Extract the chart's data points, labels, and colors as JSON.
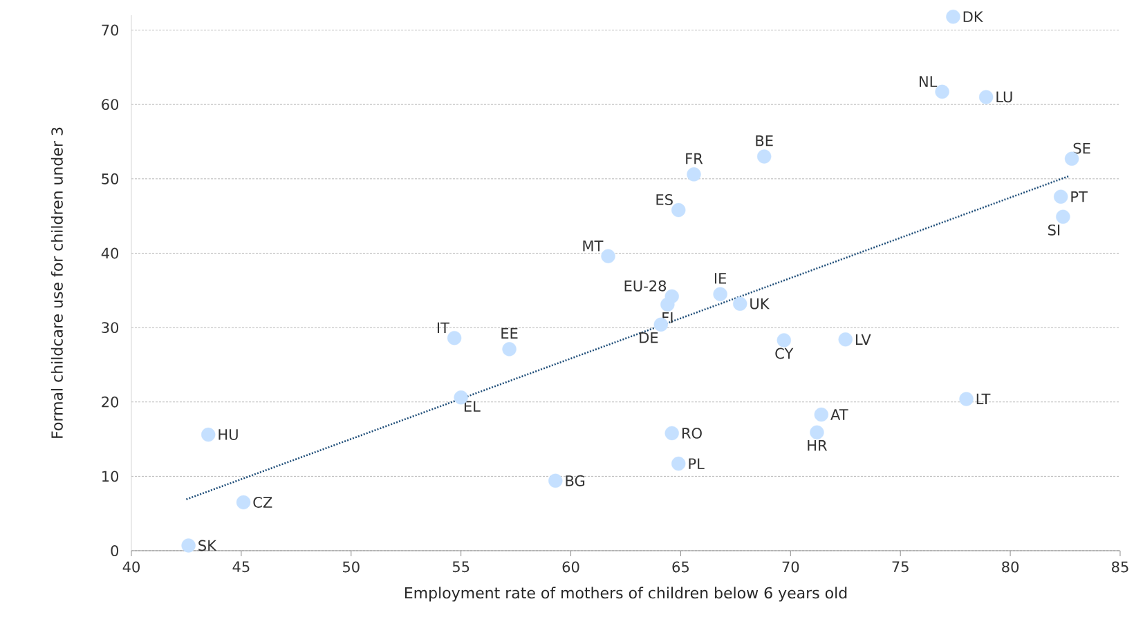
{
  "chart_data": {
    "type": "scatter",
    "xlabel": "Employment rate of mothers of children below 6 years old",
    "ylabel": "Formal childcare use for children under 3",
    "xlim": [
      40,
      85
    ],
    "xticks": [
      40,
      45,
      50,
      55,
      60,
      65,
      70,
      75,
      80,
      85
    ],
    "ylim": [
      0,
      72
    ],
    "yticks": [
      0,
      10,
      20,
      30,
      40,
      50,
      60,
      70
    ],
    "grid": "y",
    "series": [
      {
        "type": "scatter",
        "color": "#c5e0ff",
        "marker": "circle",
        "x": [
          77.4,
          76.9,
          78.9,
          68.8,
          65.6,
          82.8,
          82.3,
          82.4,
          64.9,
          61.7,
          64.6,
          64.4,
          66.8,
          67.7,
          64.1,
          54.7,
          57.2,
          69.7,
          72.5,
          78.0,
          55.0,
          71.4,
          71.2,
          64.6,
          64.9,
          43.5,
          59.3,
          45.1,
          42.6
        ],
        "values": [
          71.8,
          61.7,
          61.0,
          53.0,
          50.6,
          52.7,
          47.6,
          44.9,
          45.8,
          39.6,
          34.2,
          33.1,
          34.5,
          33.2,
          30.4,
          28.6,
          27.1,
          28.3,
          28.4,
          20.4,
          20.6,
          18.3,
          15.9,
          15.8,
          11.7,
          15.6,
          9.4,
          6.5,
          0.7
        ]
      },
      {
        "type": "line",
        "color": "#1f4e79",
        "line_style": "dotted",
        "x": [
          42.5,
          82.7
        ],
        "values": [
          6.9,
          50.4
        ]
      }
    ],
    "annotations": [
      {
        "text": "DK",
        "x": 77.4,
        "y": 71.8
      },
      {
        "text": "NL",
        "x": 76.9,
        "y": 61.7
      },
      {
        "text": "LU",
        "x": 78.9,
        "y": 61.0
      },
      {
        "text": "BE",
        "x": 68.8,
        "y": 53.0
      },
      {
        "text": "FR",
        "x": 65.6,
        "y": 50.6
      },
      {
        "text": "SE",
        "x": 82.8,
        "y": 52.7
      },
      {
        "text": "PT",
        "x": 82.3,
        "y": 47.6
      },
      {
        "text": "SI",
        "x": 82.4,
        "y": 44.9
      },
      {
        "text": "ES",
        "x": 64.9,
        "y": 45.8
      },
      {
        "text": "MT",
        "x": 61.7,
        "y": 39.6
      },
      {
        "text": "EU-28",
        "x": 64.6,
        "y": 34.2
      },
      {
        "text": "FI",
        "x": 64.4,
        "y": 33.1
      },
      {
        "text": "IE",
        "x": 66.8,
        "y": 34.5
      },
      {
        "text": "UK",
        "x": 67.7,
        "y": 33.2
      },
      {
        "text": "DE",
        "x": 64.1,
        "y": 30.4
      },
      {
        "text": "IT",
        "x": 54.7,
        "y": 28.6
      },
      {
        "text": "EE",
        "x": 57.2,
        "y": 27.1
      },
      {
        "text": "CY",
        "x": 69.7,
        "y": 28.3
      },
      {
        "text": "LV",
        "x": 72.5,
        "y": 28.4
      },
      {
        "text": "LT",
        "x": 78.0,
        "y": 20.4
      },
      {
        "text": "EL",
        "x": 55.0,
        "y": 20.6
      },
      {
        "text": "AT",
        "x": 71.4,
        "y": 18.3
      },
      {
        "text": "HR",
        "x": 71.2,
        "y": 15.9
      },
      {
        "text": "RO",
        "x": 64.6,
        "y": 15.8
      },
      {
        "text": "PL",
        "x": 64.9,
        "y": 11.7
      },
      {
        "text": "HU",
        "x": 43.5,
        "y": 15.6
      },
      {
        "text": "BG",
        "x": 59.3,
        "y": 9.4
      },
      {
        "text": "CZ",
        "x": 45.1,
        "y": 6.5
      },
      {
        "text": "SK",
        "x": 42.6,
        "y": 0.7
      }
    ]
  }
}
